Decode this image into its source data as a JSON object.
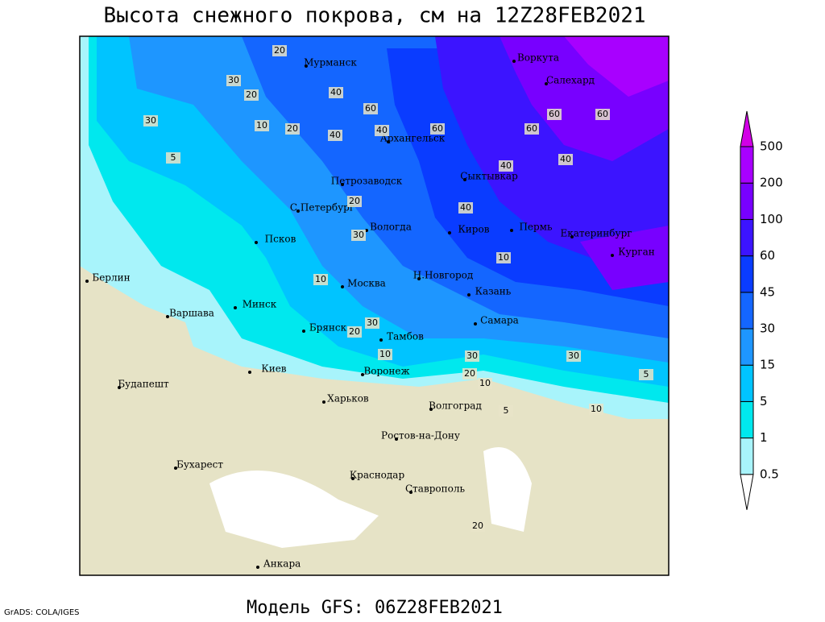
{
  "header": {
    "title": "Высота снежного покрова, см на 12Z28FEB2021"
  },
  "footer": {
    "model": "Модель GFS: 06Z28FEB2021",
    "credit": "GrADS: COLA/IGES"
  },
  "legend": {
    "levels": [
      0.5,
      1,
      5,
      15,
      30,
      45,
      60,
      100,
      200,
      500
    ],
    "colors": [
      "#ffffff",
      "#a8f4fb",
      "#00e8ee",
      "#00c4ff",
      "#1e96ff",
      "#1466ff",
      "#0a3cff",
      "#3c14ff",
      "#7800ff",
      "#a800ff",
      "#d200e6"
    ]
  },
  "cities": [
    "Мурманск",
    "Воркута",
    "Салехард",
    "Архангельск",
    "Сыктывкар",
    "Петрозаводск",
    "С.Петербург",
    "Вологда",
    "Киров",
    "Пермь",
    "Екатеринбург",
    "Курган",
    "Псков",
    "Москва",
    "Н.Новгород",
    "Казань",
    "Берлин",
    "Варшава",
    "Минск",
    "Брянск",
    "Тамбов",
    "Самара",
    "Киев",
    "Воронеж",
    "Будапешт",
    "Харьков",
    "Волгоград",
    "Ростов-на-Дону",
    "Бухарест",
    "Краснодар",
    "Ставрополь",
    "Анкара"
  ],
  "contour_labels": [
    "20",
    "30",
    "20",
    "10",
    "30",
    "40",
    "60",
    "40",
    "60",
    "40",
    "60",
    "60",
    "60",
    "40",
    "40",
    "30",
    "20",
    "10",
    "5",
    "20",
    "40",
    "10",
    "30",
    "10",
    "30",
    "30",
    "20",
    "10",
    "5",
    "10",
    "5",
    "20",
    "20"
  ]
}
